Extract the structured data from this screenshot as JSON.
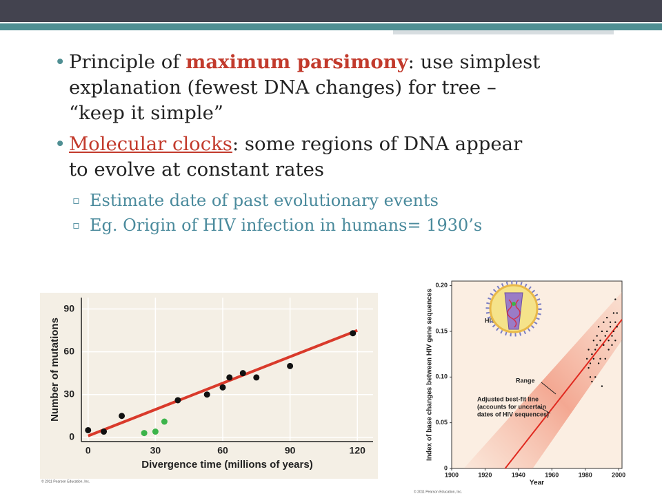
{
  "bullets": [
    {
      "before": "Principle of ",
      "term": "maximum parsimony",
      "after": ": use simplest",
      "more": [
        "explanation (fewest DNA changes) for tree –",
        "“keep it simple”"
      ]
    },
    {
      "before": "",
      "term": "Molecular clocks",
      "after": ": some regions of DNA appear",
      "more": [
        "to evolve at constant rates"
      ]
    }
  ],
  "sub_bullets": [
    "Estimate date of past evolutionary events",
    "Eg. Origin of HIV infection in humans= 1930’s"
  ],
  "chart_data": [
    {
      "type": "scatter",
      "xlabel": "Divergence time (millions of years)",
      "ylabel": "Number of mutations",
      "xlim": [
        -3,
        127
      ],
      "ylim": [
        -3,
        98
      ],
      "xticks": [
        0,
        30,
        60,
        90,
        120
      ],
      "yticks": [
        0,
        30,
        60,
        90
      ],
      "grid": true,
      "series": [
        {
          "color": "#d93a2b",
          "style": "line",
          "x": [
            0,
            120
          ],
          "values": [
            1,
            75
          ]
        },
        {
          "color": "#111111",
          "style": "points",
          "x": [
            0,
            7,
            15,
            40,
            53,
            60,
            63,
            69,
            75,
            90,
            118
          ],
          "values": [
            5,
            4,
            15,
            26,
            30,
            35,
            42,
            45,
            42,
            50,
            73
          ]
        },
        {
          "color": "#3cb44b",
          "style": "points",
          "x": [
            25,
            30,
            34
          ],
          "values": [
            3,
            4,
            11
          ]
        }
      ],
      "copyright": "© 2011 Pearson Education, Inc."
    },
    {
      "type": "scatter",
      "xlabel": "Year",
      "ylabel": "Index of base changes between HIV gene sequences",
      "xlim": [
        1900,
        2002
      ],
      "ylim": [
        0,
        0.205
      ],
      "xticks": [
        1900,
        1920,
        1940,
        1960,
        1980,
        2000
      ],
      "yticks": [
        0,
        0.05,
        {
          "value": 0.1,
          "label": "0.10"
        },
        0.15,
        {
          "value": 0.2,
          "label": "0.20"
        }
      ],
      "grid": false,
      "series": [
        {
          "color": "#e02a20",
          "style": "line",
          "x": [
            1932,
            2002
          ],
          "values": [
            0,
            0.163
          ]
        },
        {
          "color": "#111111",
          "style": "points",
          "x": [
            1981,
            1982,
            1982,
            1983,
            1983,
            1984,
            1984,
            1985,
            1985,
            1986,
            1986,
            1987,
            1987,
            1988,
            1988,
            1989,
            1989,
            1990,
            1990,
            1991,
            1991,
            1992,
            1992,
            1993,
            1993,
            1994,
            1994,
            1995,
            1995,
            1996,
            1996,
            1997,
            1997,
            1998,
            1998,
            1999,
            1999,
            1998
          ],
          "values": [
            0.12,
            0.11,
            0.13,
            0.115,
            0.1,
            0.125,
            0.095,
            0.14,
            0.12,
            0.13,
            0.1,
            0.135,
            0.145,
            0.115,
            0.155,
            0.14,
            0.12,
            0.15,
            0.09,
            0.135,
            0.16,
            0.145,
            0.12,
            0.15,
            0.165,
            0.14,
            0.13,
            0.155,
            0.16,
            0.145,
            0.135,
            0.15,
            0.17,
            0.14,
            0.16,
            0.155,
            0.17,
            0.185
          ]
        }
      ],
      "annotations": [
        "HIV",
        "Range",
        "Adjusted best-fit line",
        "(accounts for uncertain",
        "dates of HIV sequences)"
      ],
      "copyright": "© 2011 Pearson Education, Inc."
    }
  ]
}
